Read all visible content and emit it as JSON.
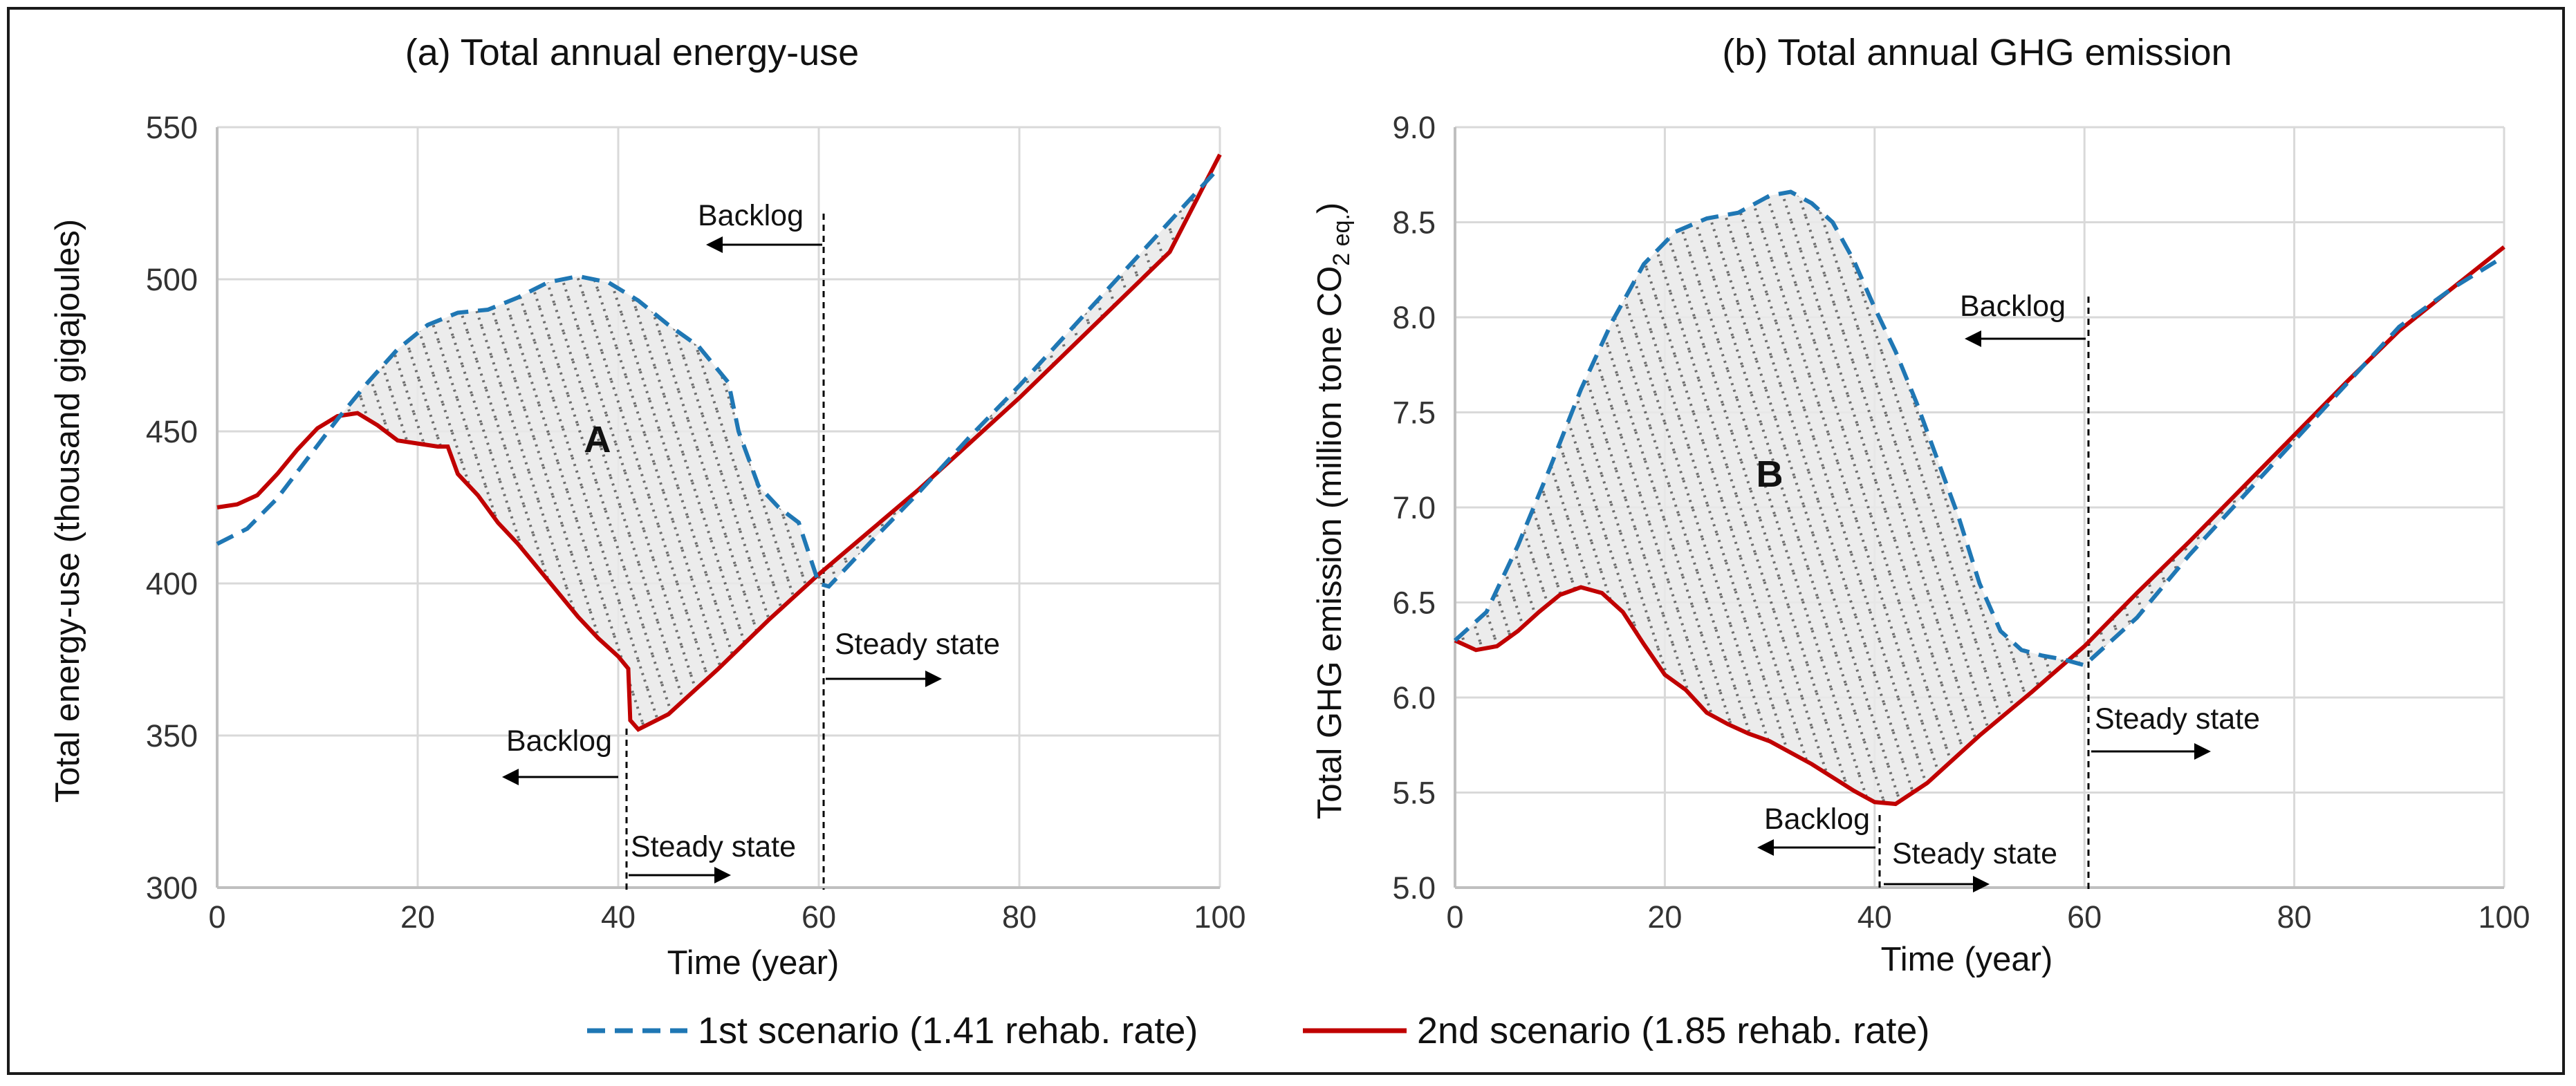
{
  "legend": {
    "s1": "1st scenario (1.41 rehab. rate)",
    "s2": "2nd scenario (1.85 rehab. rate)"
  },
  "colors": {
    "s1": "#1f77b4",
    "s2": "#c00000",
    "grid": "#d9d9d9",
    "axis": "#bfbfbf",
    "text": "#111111"
  },
  "chart_data": [
    {
      "type": "line",
      "title": "(a) Total annual energy-use",
      "xlabel": "Time (year)",
      "ylabel": "Total energy-use (thousand gigajoules)",
      "xlim": [
        0,
        100
      ],
      "ylim": [
        300,
        550
      ],
      "xticks": [
        0,
        20,
        40,
        60,
        80,
        100
      ],
      "yticks": [
        300,
        350,
        400,
        450,
        500,
        550
      ],
      "grid": true,
      "shaded_region_label": "A",
      "series": [
        {
          "name": "1st scenario (1.41 rehab. rate)",
          "style": "dashed",
          "x": [
            0,
            3,
            6,
            9,
            12,
            15,
            18,
            21,
            24,
            27,
            30,
            33,
            36,
            39,
            42,
            45,
            48,
            50,
            51,
            52,
            54,
            56,
            58,
            59,
            60,
            61,
            65,
            70,
            75,
            80,
            85,
            90,
            95,
            100
          ],
          "y": [
            413,
            418,
            428,
            441,
            454,
            466,
            477,
            485,
            489,
            490,
            494,
            499,
            501,
            499,
            493,
            485,
            478,
            470,
            466,
            450,
            432,
            425,
            420,
            410,
            400,
            399,
            413,
            430,
            448,
            465,
            483,
            501,
            519,
            537
          ]
        },
        {
          "name": "2nd scenario (1.85 rehab. rate)",
          "style": "solid",
          "x": [
            0,
            2,
            4,
            6,
            8,
            10,
            12,
            14,
            16,
            18,
            20,
            22,
            23,
            24,
            26,
            28,
            30,
            32,
            34,
            36,
            38,
            40,
            41,
            41.2,
            42,
            45,
            50,
            55,
            60,
            65,
            70,
            75,
            80,
            85,
            90,
            95,
            100
          ],
          "y": [
            425,
            426,
            429,
            436,
            444,
            451,
            455,
            456,
            452,
            447,
            446,
            445,
            445,
            436,
            429,
            420,
            413,
            405,
            397,
            389,
            382,
            376,
            372,
            355,
            352,
            357,
            372,
            388,
            403,
            417,
            431,
            446,
            461,
            477,
            493,
            509,
            541
          ]
        }
      ],
      "annotations": [
        {
          "text": "Backlog",
          "at_x": 60,
          "direction": "left"
        },
        {
          "text": "Steady state",
          "at_x": 60,
          "direction": "right"
        },
        {
          "text": "Backlog",
          "at_x": 40,
          "direction": "left"
        },
        {
          "text": "Steady state",
          "at_x": 40,
          "direction": "right"
        }
      ]
    },
    {
      "type": "line",
      "title": "(b) Total annual GHG emission",
      "xlabel": "Time (year)",
      "ylabel": "Total GHG emission (million tone CO2 eq.)",
      "ylabel_main": "Total GHG emission (million tone CO",
      "ylabel_sub": "2 eq.",
      "ylabel_end": ")",
      "xlim": [
        0,
        100
      ],
      "ylim": [
        5.0,
        9.0
      ],
      "xticks": [
        0,
        20,
        40,
        60,
        80,
        100
      ],
      "yticks": [
        5.0,
        5.5,
        6.0,
        6.5,
        7.0,
        7.5,
        8.0,
        8.5,
        9.0
      ],
      "grid": true,
      "shaded_region_label": "B",
      "series": [
        {
          "name": "1st scenario (1.41 rehab. rate)",
          "style": "dashed",
          "x": [
            0,
            3,
            6,
            9,
            12,
            15,
            18,
            21,
            24,
            27,
            30,
            32,
            34,
            36,
            38,
            40,
            42,
            44,
            46,
            48,
            50,
            52,
            54,
            56,
            58,
            60,
            65,
            70,
            75,
            80,
            85,
            90,
            95,
            100
          ],
          "y": [
            6.3,
            6.45,
            6.8,
            7.2,
            7.62,
            7.98,
            8.28,
            8.45,
            8.52,
            8.55,
            8.64,
            8.66,
            8.6,
            8.5,
            8.3,
            8.05,
            7.82,
            7.55,
            7.25,
            6.95,
            6.6,
            6.35,
            6.25,
            6.22,
            6.2,
            6.17,
            6.42,
            6.75,
            7.05,
            7.35,
            7.65,
            7.95,
            8.15,
            8.32
          ]
        },
        {
          "name": "2nd scenario (1.85 rehab. rate)",
          "style": "solid",
          "x": [
            0,
            2,
            4,
            6,
            8,
            10,
            12,
            14,
            16,
            18,
            20,
            22,
            24,
            26,
            28,
            30,
            32,
            34,
            36,
            38,
            40,
            42,
            45,
            50,
            55,
            60,
            65,
            70,
            75,
            80,
            85,
            90,
            95,
            100
          ],
          "y": [
            6.3,
            6.25,
            6.27,
            6.35,
            6.45,
            6.54,
            6.58,
            6.55,
            6.45,
            6.28,
            6.12,
            6.04,
            5.92,
            5.86,
            5.81,
            5.77,
            5.71,
            5.65,
            5.58,
            5.51,
            5.45,
            5.44,
            5.55,
            5.8,
            6.03,
            6.27,
            6.55,
            6.82,
            7.1,
            7.38,
            7.66,
            7.93,
            8.15,
            8.37
          ]
        }
      ],
      "annotations": [
        {
          "text": "Backlog",
          "at_x": 60,
          "direction": "left"
        },
        {
          "text": "Steady state",
          "at_x": 60,
          "direction": "right"
        },
        {
          "text": "Backlog",
          "at_x": 40,
          "direction": "left"
        },
        {
          "text": "Steady state",
          "at_x": 40,
          "direction": "right"
        }
      ]
    }
  ]
}
